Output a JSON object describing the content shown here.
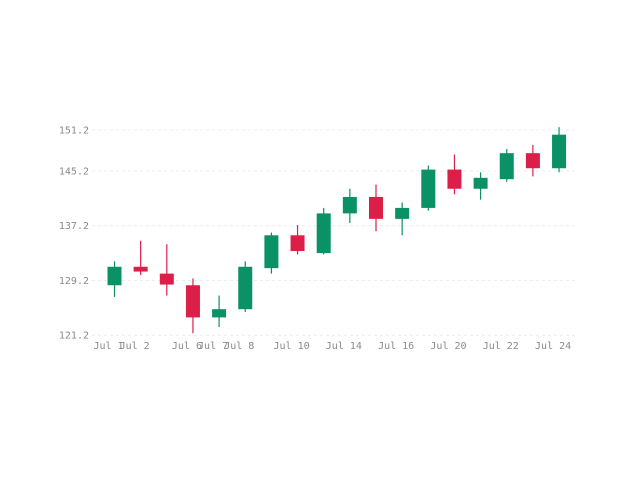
{
  "chart_data": {
    "type": "candlestick",
    "title": "",
    "xlabel": "",
    "ylabel": "",
    "ylim": [
      120.5,
      152.5
    ],
    "y_ticks": [
      121.2,
      129.2,
      137.2,
      145.2,
      151.2
    ],
    "grid": "horizontal-dashed",
    "colors": {
      "up": "#0a9166",
      "down": "#dc1f48"
    },
    "candles": [
      {
        "date": "Jul 1",
        "open": 128.5,
        "high": 132.0,
        "low": 126.8,
        "close": 131.2
      },
      {
        "date": "Jul 2",
        "open": 131.2,
        "high": 135.0,
        "low": 130.0,
        "close": 130.5
      },
      {
        "date": "Jul 3",
        "open": 130.2,
        "high": 134.5,
        "low": 127.0,
        "close": 128.6
      },
      {
        "date": "Jul 6",
        "open": 128.5,
        "high": 129.5,
        "low": 121.5,
        "close": 123.8
      },
      {
        "date": "Jul 7",
        "open": 123.8,
        "high": 127.0,
        "low": 122.4,
        "close": 125.0
      },
      {
        "date": "Jul 8",
        "open": 125.0,
        "high": 132.0,
        "low": 124.6,
        "close": 131.2
      },
      {
        "date": "Jul 9",
        "open": 131.0,
        "high": 136.2,
        "low": 130.2,
        "close": 135.8
      },
      {
        "date": "Jul 10",
        "open": 135.8,
        "high": 137.3,
        "low": 133.0,
        "close": 133.5
      },
      {
        "date": "Jul 13",
        "open": 133.2,
        "high": 139.8,
        "low": 133.0,
        "close": 139.0
      },
      {
        "date": "Jul 14",
        "open": 139.0,
        "high": 142.6,
        "low": 137.6,
        "close": 141.4
      },
      {
        "date": "Jul 15",
        "open": 141.4,
        "high": 143.2,
        "low": 136.4,
        "close": 138.2
      },
      {
        "date": "Jul 16",
        "open": 138.2,
        "high": 140.6,
        "low": 135.8,
        "close": 139.8
      },
      {
        "date": "Jul 17",
        "open": 139.8,
        "high": 146.0,
        "low": 139.4,
        "close": 145.4
      },
      {
        "date": "Jul 20",
        "open": 145.4,
        "high": 147.6,
        "low": 141.8,
        "close": 142.6
      },
      {
        "date": "Jul 21",
        "open": 142.6,
        "high": 145.0,
        "low": 141.0,
        "close": 144.2
      },
      {
        "date": "Jul 22",
        "open": 144.0,
        "high": 148.4,
        "low": 143.6,
        "close": 147.8
      },
      {
        "date": "Jul 23",
        "open": 147.8,
        "high": 149.0,
        "low": 144.4,
        "close": 145.6
      },
      {
        "date": "Jul 24",
        "open": 145.6,
        "high": 151.6,
        "low": 145.0,
        "close": 150.5
      }
    ],
    "x_tick_labels": [
      "Jul 1",
      "Jul 2",
      "Jul 6",
      "Jul 7",
      "Jul 8",
      "Jul 10",
      "Jul 14",
      "Jul 16",
      "Jul 20",
      "Jul 22",
      "Jul 24"
    ]
  }
}
